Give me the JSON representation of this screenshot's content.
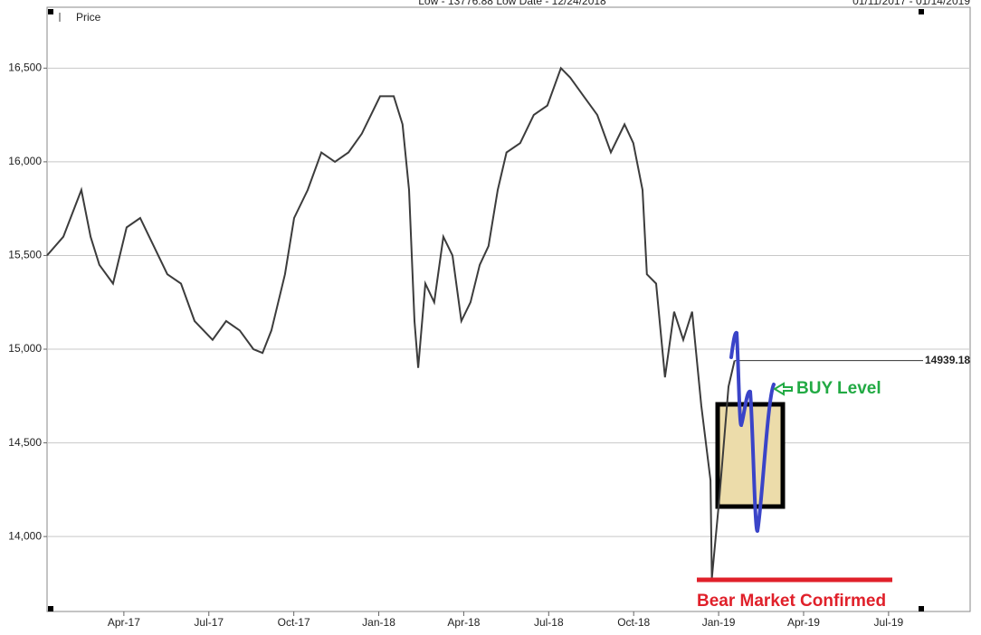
{
  "chart_data": {
    "type": "line",
    "header_left": "Low - 13776.88 Low Date - 12/24/2018",
    "header_right": "01/11/2017 - 01/14/2019",
    "x": [
      2017.024,
      2017.072,
      2017.125,
      2017.152,
      2017.178,
      2017.218,
      2017.258,
      2017.298,
      2017.338,
      2017.378,
      2017.418,
      2017.458,
      2017.511,
      2017.551,
      2017.591,
      2017.631,
      2017.658,
      2017.684,
      2017.724,
      2017.751,
      2017.791,
      2017.831,
      2017.871,
      2017.911,
      2017.95,
      2018.004,
      2018.044,
      2018.07,
      2018.089,
      2018.105,
      2018.116,
      2018.137,
      2018.163,
      2018.19,
      2018.217,
      2018.243,
      2018.27,
      2018.297,
      2018.323,
      2018.35,
      2018.376,
      2018.416,
      2018.456,
      2018.496,
      2018.536,
      2018.563,
      2018.603,
      2018.643,
      2018.683,
      2018.723,
      2018.749,
      2018.776,
      2018.789,
      2018.816,
      2018.842,
      2018.869,
      2018.896,
      2018.922,
      2018.949,
      2018.976,
      2018.98,
      2019.002,
      2019.029,
      2019.047
    ],
    "series": [
      {
        "name": "Price",
        "color": "#3c3c3c",
        "values": [
          15500,
          15600,
          15850,
          15600,
          15450,
          15350,
          15650,
          15700,
          15550,
          15400,
          15350,
          15150,
          15050,
          15150,
          15100,
          15000,
          14980,
          15100,
          15400,
          15700,
          15850,
          16050,
          16000,
          16050,
          16150,
          16350,
          16350,
          16200,
          15850,
          15150,
          14900,
          15350,
          15250,
          15600,
          15500,
          15150,
          15250,
          15450,
          15550,
          15850,
          16050,
          16100,
          16250,
          16300,
          16500,
          16450,
          16350,
          16250,
          16050,
          16200,
          16100,
          15850,
          15400,
          15350,
          14850,
          15200,
          15050,
          15200,
          14700,
          14300,
          13776.88,
          14200,
          14800,
          14939.18
        ]
      }
    ],
    "xlim": [
      2017.024,
      2019.74
    ],
    "ylim": [
      13600,
      16825
    ],
    "xticks": [
      {
        "value": 2017.25,
        "label": "Apr-17"
      },
      {
        "value": 2017.5,
        "label": "Jul-17"
      },
      {
        "value": 2017.75,
        "label": "Oct-17"
      },
      {
        "value": 2018.0,
        "label": "Jan-18"
      },
      {
        "value": 2018.25,
        "label": "Apr-18"
      },
      {
        "value": 2018.5,
        "label": "Jul-18"
      },
      {
        "value": 2018.75,
        "label": "Oct-18"
      },
      {
        "value": 2019.0,
        "label": "Jan-19"
      },
      {
        "value": 2019.25,
        "label": "Apr-19"
      },
      {
        "value": 2019.5,
        "label": "Jul-19"
      }
    ],
    "yticks": [
      {
        "value": 14000,
        "label": "14,000"
      },
      {
        "value": 14500,
        "label": "14,500"
      },
      {
        "value": 15000,
        "label": "15,000"
      },
      {
        "value": 15500,
        "label": "15,500"
      },
      {
        "value": 16000,
        "label": "16,000"
      },
      {
        "value": 16500,
        "label": "16,500"
      }
    ],
    "grid": true,
    "last_value": 14939.18,
    "annotations": [
      "BUY Level",
      "Bear Market Confirmed"
    ]
  }
}
